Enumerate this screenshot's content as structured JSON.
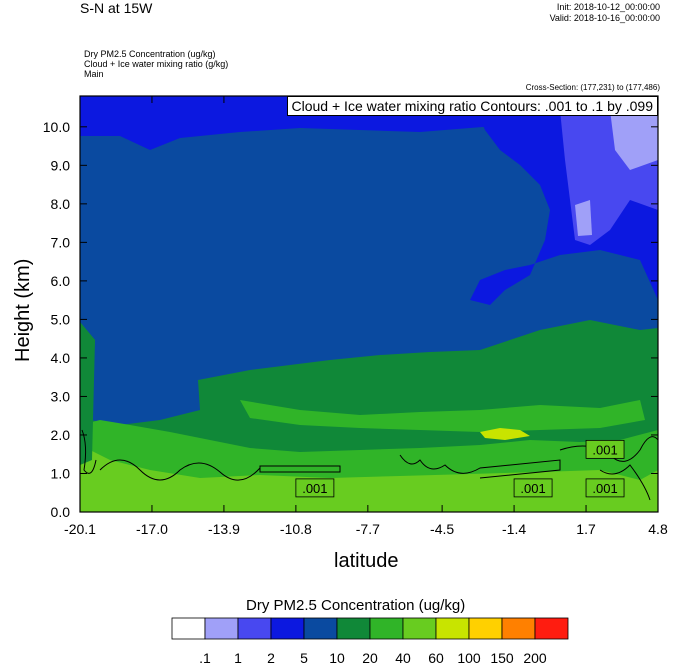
{
  "header": {
    "title": "S-N at 15W",
    "init": "Init: 2018-10-12_00:00:00",
    "valid": "Valid: 2018-10-16_00:00:00",
    "field1": "Dry PM2.5 Concentration   (ug/kg)",
    "field2": "Cloud + Ice water mixing ratio   (g/kg)",
    "field3": "Main",
    "cross_section": "Cross-Section: (177,231) to (177,486)"
  },
  "chart_data": {
    "type": "heatmap",
    "title": "Cloud + Ice water mixing ratio Contours: .001 to .1 by .099",
    "xlabel": "latitude",
    "ylabel": "Height (km)",
    "x_ticks": [
      "-20.1",
      "-17.0",
      "-13.9",
      "-10.8",
      "-7.7",
      "-4.5",
      "-1.4",
      "1.7",
      "4.8"
    ],
    "y_ticks": [
      "0.0",
      "1.0",
      "2.0",
      "3.0",
      "4.0",
      "5.0",
      "6.0",
      "7.0",
      "8.0",
      "9.0",
      "10.0"
    ],
    "xlim": [
      -20.1,
      4.8
    ],
    "ylim": [
      0,
      10.8
    ],
    "colorbar": {
      "title": "Dry PM2.5 Concentration  (ug/kg)",
      "levels": [
        ".1",
        "1",
        "2",
        "5",
        "10",
        "20",
        "40",
        "60",
        "100",
        "150",
        "200"
      ],
      "colors": [
        "#ffffff",
        "#a0a0f8",
        "#4848f0",
        "#0c18e0",
        "#0a4aa0",
        "#108838",
        "#30b428",
        "#68cc20",
        "#c8e400",
        "#ffd000",
        "#ff8000",
        "#ff1c10"
      ]
    },
    "contour_labels": [
      ".001",
      ".001",
      ".001",
      ".001"
    ]
  }
}
